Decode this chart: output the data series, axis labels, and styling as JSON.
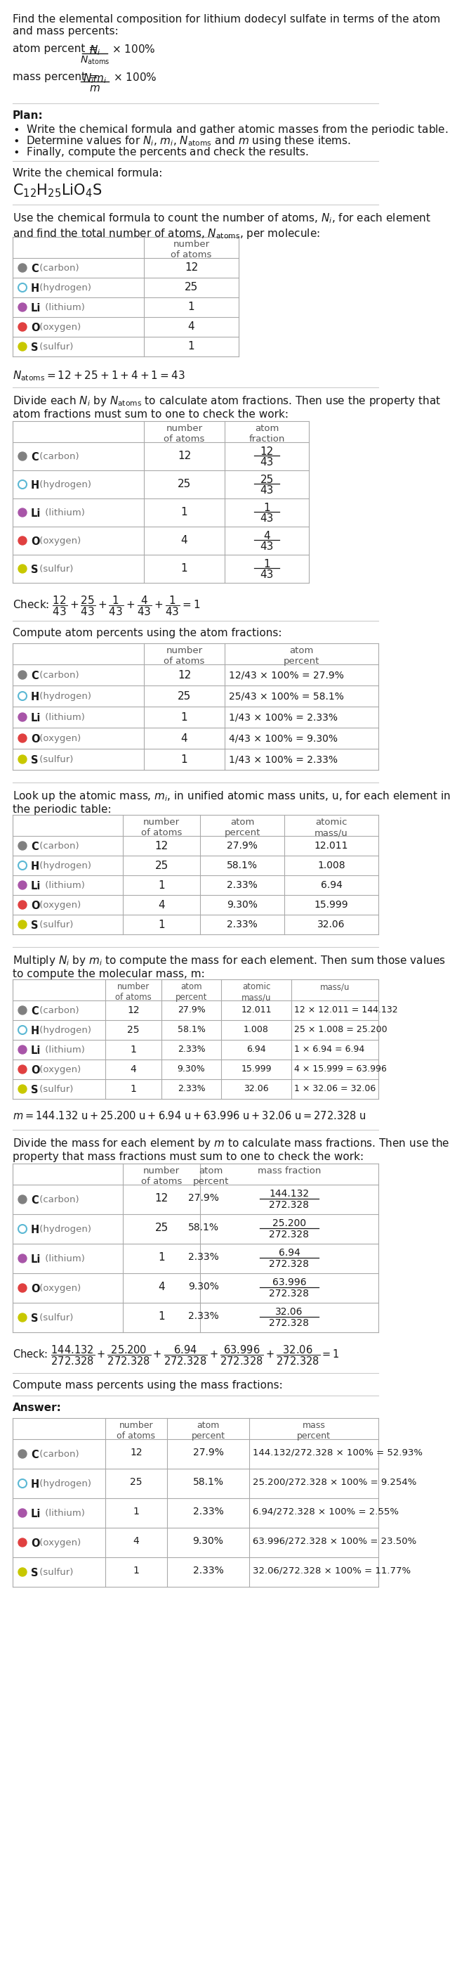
{
  "elements": [
    "C (carbon)",
    "H (hydrogen)",
    "Li (lithium)",
    "O (oxygen)",
    "S (sulfur)"
  ],
  "colors": [
    "#808080",
    "#5BB8D4",
    "#A855A8",
    "#E04040",
    "#C8C800"
  ],
  "dot_filled": [
    true,
    false,
    true,
    true,
    true
  ],
  "n_atoms": [
    12,
    25,
    1,
    4,
    1
  ],
  "atom_fractions": [
    "12",
    "25",
    "1",
    "4",
    "1"
  ],
  "atom_percents_short": [
    "27.9%",
    "58.1%",
    "2.33%",
    "9.30%",
    "2.33%"
  ],
  "atomic_masses": [
    "12.011",
    "1.008",
    "6.94",
    "15.999",
    "32.06"
  ],
  "masses_num": [
    "12 × 12.011 = 144.132",
    "25 × 1.008 = 25.200",
    "1 × 6.94 = 6.94",
    "4 × 15.999 = 63.996",
    "1 × 32.06 = 32.06"
  ],
  "mass_fractions_num": [
    "144.132",
    "25.200",
    "6.94",
    "63.996",
    "32.06"
  ],
  "mass_fractions_den": "272.328",
  "mass_percents": [
    "144.132/272.328 × 100% = 52.93%",
    "25.200/272.328 × 100% = 9.254%",
    "6.94/272.328 × 100% = 2.55%",
    "63.996/272.328 × 100% = 23.50%",
    "32.06/272.328 × 100% = 11.77%"
  ],
  "bg_color": "#FFFFFF"
}
